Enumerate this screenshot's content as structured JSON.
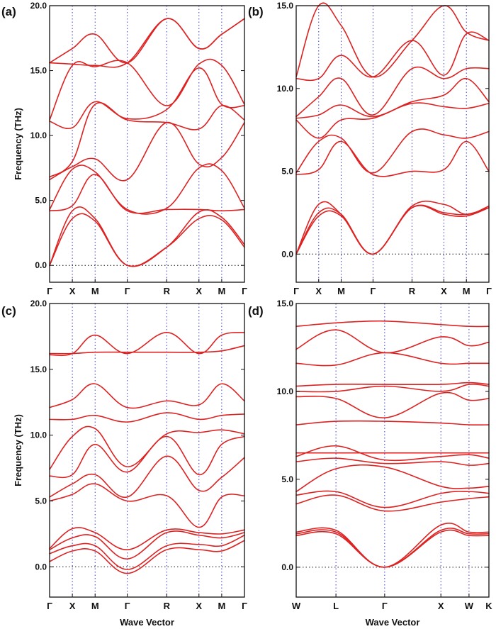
{
  "chart_data": [
    {
      "panel": "(a)",
      "type": "line",
      "ylabel": "Frequency (THz)",
      "xlabel": "",
      "ylim": [
        -1.3,
        20.0
      ],
      "yticks": [
        "0.0",
        "5.0",
        "10.0",
        "15.0",
        "20.0"
      ],
      "ytick_values": [
        0,
        5,
        10,
        15,
        20
      ],
      "path_labels": [
        "Γ",
        "X",
        "M",
        "Γ",
        "R",
        "X",
        "M",
        "Γ"
      ],
      "path_positions": [
        0,
        0.5,
        1.0,
        1.707,
        2.573,
        3.281,
        3.781,
        4.281
      ],
      "series": [
        {
          "x": [
            0,
            0.5,
            1.0,
            1.707,
            2.573,
            3.281,
            3.781,
            4.281
          ],
          "y": [
            0,
            3.6,
            3.4,
            0,
            1.4,
            3.6,
            3.5,
            1.4
          ]
        },
        {
          "x": [
            0,
            0.5,
            1.0,
            1.707,
            2.573,
            3.281,
            3.781,
            4.281
          ],
          "y": [
            0,
            4.2,
            3.6,
            0,
            1.4,
            4.1,
            3.7,
            1.6
          ]
        },
        {
          "x": [
            0,
            0.5,
            1.0,
            1.707,
            2.573,
            3.281,
            3.781,
            4.281
          ],
          "y": [
            4.2,
            4.6,
            7.0,
            4.2,
            4.3,
            4.3,
            4.2,
            4.3
          ]
        },
        {
          "x": [
            0,
            0.5,
            1.0,
            1.707,
            2.573,
            3.281,
            3.781,
            4.281
          ],
          "y": [
            4.3,
            7.4,
            7.2,
            4.3,
            4.4,
            7.5,
            7.3,
            4.4
          ]
        },
        {
          "x": [
            0,
            0.5,
            1.0,
            1.707,
            2.573,
            3.281,
            3.781,
            4.281
          ],
          "y": [
            6.6,
            7.6,
            8.2,
            6.6,
            11.0,
            7.8,
            8.3,
            11.0
          ]
        },
        {
          "x": [
            0,
            0.5,
            1.0,
            1.707,
            2.573,
            3.281,
            3.781,
            4.281
          ],
          "y": [
            6.8,
            8.0,
            12.4,
            11.2,
            11.0,
            10.5,
            12.3,
            11.2
          ]
        },
        {
          "x": [
            0,
            0.5,
            1.0,
            1.707,
            2.573,
            3.281,
            3.781,
            4.281
          ],
          "y": [
            11.1,
            10.6,
            12.6,
            11.3,
            12.0,
            15.2,
            12.4,
            12.3
          ]
        },
        {
          "x": [
            0,
            0.5,
            1.0,
            1.707,
            2.573,
            3.281,
            3.781,
            4.281
          ],
          "y": [
            11.2,
            15.4,
            15.3,
            15.6,
            12.3,
            15.5,
            15.4,
            12.4
          ]
        },
        {
          "x": [
            0,
            0.5,
            1.0,
            1.707,
            2.573,
            3.281,
            3.781,
            4.281
          ],
          "y": [
            15.6,
            15.5,
            15.4,
            15.6,
            19.0,
            16.7,
            17.8,
            19.0
          ]
        },
        {
          "x": [
            0,
            0.5,
            1.0,
            1.707,
            2.573,
            3.281,
            3.781,
            4.281
          ],
          "y": [
            15.6,
            16.7,
            17.8,
            15.6,
            19.0,
            16.7,
            17.8,
            19.0
          ]
        }
      ]
    },
    {
      "panel": "(b)",
      "type": "line",
      "ylabel": "",
      "xlabel": "",
      "ylim": [
        -1.7,
        15.0
      ],
      "yticks": [
        "0.0",
        "5.0",
        "10.0",
        "15.0"
      ],
      "ytick_values": [
        0,
        5,
        10,
        15
      ],
      "path_labels": [
        "Γ",
        "X",
        "M",
        "Γ",
        "R",
        "X",
        "M",
        "Γ"
      ],
      "path_positions": [
        0,
        0.5,
        1.0,
        1.707,
        2.573,
        3.281,
        3.781,
        4.281
      ],
      "series": [
        {
          "x": [
            0,
            0.5,
            1.0,
            1.707,
            2.573,
            3.281,
            3.781,
            4.281
          ],
          "y": [
            0,
            2.3,
            2.3,
            0,
            2.8,
            2.4,
            2.3,
            2.8
          ]
        },
        {
          "x": [
            0,
            0.5,
            1.0,
            1.707,
            2.573,
            3.281,
            3.781,
            4.281
          ],
          "y": [
            0,
            2.5,
            2.4,
            0,
            2.8,
            2.5,
            2.4,
            2.8
          ]
        },
        {
          "x": [
            0,
            0.5,
            1.0,
            1.707,
            2.573,
            3.281,
            3.781,
            4.281
          ],
          "y": [
            0,
            3.0,
            2.4,
            0,
            2.9,
            3.0,
            2.4,
            2.9
          ]
        },
        {
          "x": [
            0,
            0.5,
            1.0,
            1.707,
            2.573,
            3.281,
            3.781,
            4.281
          ],
          "y": [
            4.8,
            5.1,
            6.8,
            4.8,
            5.0,
            5.1,
            6.8,
            5.0
          ]
        },
        {
          "x": [
            0,
            0.5,
            1.0,
            1.707,
            2.573,
            3.281,
            3.781,
            4.281
          ],
          "y": [
            4.9,
            6.8,
            7.0,
            4.9,
            7.4,
            7.2,
            7.0,
            7.4
          ]
        },
        {
          "x": [
            0,
            0.5,
            1.0,
            1.707,
            2.573,
            3.281,
            3.781,
            4.281
          ],
          "y": [
            8.1,
            7.0,
            8.1,
            8.2,
            9.1,
            8.9,
            8.8,
            9.1
          ]
        },
        {
          "x": [
            0,
            0.5,
            1.0,
            1.707,
            2.573,
            3.281,
            3.781,
            4.281
          ],
          "y": [
            8.2,
            8.4,
            9.0,
            8.3,
            9.2,
            9.6,
            10.6,
            9.2
          ]
        },
        {
          "x": [
            0,
            0.5,
            1.0,
            1.707,
            2.573,
            3.281,
            3.781,
            4.281
          ],
          "y": [
            8.3,
            9.5,
            10.6,
            8.4,
            11.2,
            10.6,
            11.2,
            11.2
          ]
        },
        {
          "x": [
            0,
            0.5,
            1.0,
            1.707,
            2.573,
            3.281,
            3.781,
            4.281
          ],
          "y": [
            10.6,
            10.6,
            12.0,
            10.7,
            12.9,
            10.8,
            13.3,
            12.9
          ]
        },
        {
          "x": [
            0,
            0.5,
            1.0,
            1.707,
            2.573,
            3.281,
            3.781,
            4.281
          ],
          "y": [
            10.7,
            15.0,
            13.8,
            10.7,
            12.9,
            15.0,
            13.4,
            12.9
          ]
        }
      ]
    },
    {
      "panel": "(c)",
      "type": "line",
      "ylabel": "Frequency (THz)",
      "xlabel": "Wave Vector",
      "ylim": [
        -2.3,
        20.0
      ],
      "yticks": [
        "0.0",
        "5.0",
        "10.0",
        "15.0",
        "20.0"
      ],
      "ytick_values": [
        0,
        5,
        10,
        15,
        20
      ],
      "path_labels": [
        "Γ",
        "X",
        "M",
        "Γ",
        "R",
        "X",
        "M",
        "Γ"
      ],
      "path_positions": [
        0,
        0.5,
        1.0,
        1.707,
        2.573,
        3.281,
        3.781,
        4.281
      ],
      "series": [
        {
          "x": [
            0,
            0.5,
            1.0,
            1.707,
            2.573,
            3.281,
            3.781,
            4.281
          ],
          "y": [
            0.4,
            1.2,
            1.2,
            -0.5,
            1.3,
            1.3,
            1.2,
            2.0
          ]
        },
        {
          "x": [
            0,
            0.5,
            1.0,
            1.707,
            2.573,
            3.281,
            3.781,
            4.281
          ],
          "y": [
            1.0,
            1.6,
            1.6,
            -0.2,
            1.6,
            1.7,
            1.6,
            2.4
          ]
        },
        {
          "x": [
            0,
            0.5,
            1.0,
            1.707,
            2.573,
            3.281,
            3.781,
            4.281
          ],
          "y": [
            1.3,
            2.2,
            2.3,
            0.6,
            2.6,
            2.4,
            2.2,
            2.6
          ]
        },
        {
          "x": [
            0,
            0.5,
            1.0,
            1.707,
            2.573,
            3.281,
            3.781,
            4.281
          ],
          "y": [
            1.4,
            2.9,
            2.6,
            1.3,
            2.8,
            2.6,
            2.5,
            2.8
          ]
        },
        {
          "x": [
            0,
            0.5,
            1.0,
            1.707,
            2.573,
            3.281,
            3.781,
            4.281
          ],
          "y": [
            5.0,
            5.5,
            6.3,
            5.0,
            5.4,
            3.0,
            5.3,
            5.4
          ]
        },
        {
          "x": [
            0,
            0.5,
            1.0,
            1.707,
            2.573,
            3.281,
            3.781,
            4.281
          ],
          "y": [
            5.3,
            6.3,
            7.0,
            5.3,
            8.4,
            5.8,
            6.8,
            8.3
          ]
        },
        {
          "x": [
            0,
            0.5,
            1.0,
            1.707,
            2.573,
            3.281,
            3.781,
            4.281
          ],
          "y": [
            6.9,
            7.0,
            9.3,
            7.2,
            9.9,
            7.0,
            9.3,
            9.9
          ]
        },
        {
          "x": [
            0,
            0.5,
            1.0,
            1.707,
            2.573,
            3.281,
            3.781,
            4.281
          ],
          "y": [
            7.4,
            9.9,
            10.5,
            7.6,
            10.1,
            10.2,
            10.4,
            10.1
          ]
        },
        {
          "x": [
            0,
            0.5,
            1.0,
            1.707,
            2.573,
            3.281,
            3.781,
            4.281
          ],
          "y": [
            11.2,
            11.2,
            11.5,
            11.0,
            11.7,
            11.2,
            11.5,
            11.6
          ]
        },
        {
          "x": [
            0,
            0.5,
            1.0,
            1.707,
            2.573,
            3.281,
            3.781,
            4.281
          ],
          "y": [
            12.1,
            12.7,
            13.9,
            12.1,
            12.6,
            12.3,
            13.9,
            12.6
          ]
        },
        {
          "x": [
            0,
            0.5,
            1.0,
            1.707,
            2.573,
            3.281,
            3.781,
            4.281
          ],
          "y": [
            16.1,
            16.2,
            17.6,
            16.2,
            17.8,
            16.2,
            17.6,
            17.8
          ]
        },
        {
          "x": [
            0,
            0.5,
            1.0,
            1.707,
            2.573,
            3.281,
            3.781,
            4.281
          ],
          "y": [
            16.2,
            16.2,
            16.3,
            16.3,
            16.3,
            16.3,
            16.4,
            16.8
          ]
        }
      ]
    },
    {
      "panel": "(d)",
      "type": "line",
      "ylabel": "",
      "xlabel": "Wave Vector",
      "ylim": [
        -1.7,
        15.0
      ],
      "yticks": [
        "0.0",
        "5.0",
        "10.0",
        "15.0"
      ],
      "ytick_values": [
        0,
        5,
        10,
        15
      ],
      "path_labels": [
        "W",
        "L",
        "Γ",
        "X",
        "W",
        "K"
      ],
      "path_positions": [
        0,
        0.707,
        1.573,
        2.573,
        3.073,
        3.427
      ],
      "series": [
        {
          "x": [
            0,
            0.707,
            1.573,
            2.573,
            3.073,
            3.427
          ],
          "y": [
            1.8,
            1.9,
            0,
            2.0,
            1.8,
            1.8
          ]
        },
        {
          "x": [
            0,
            0.707,
            1.573,
            2.573,
            3.073,
            3.427
          ],
          "y": [
            1.9,
            2.0,
            0,
            2.1,
            1.9,
            1.9
          ]
        },
        {
          "x": [
            0,
            0.707,
            1.573,
            2.573,
            3.073,
            3.427
          ],
          "y": [
            2.0,
            2.1,
            0,
            2.4,
            2.0,
            2.0
          ]
        },
        {
          "x": [
            0,
            0.707,
            1.573,
            2.573,
            3.073,
            3.427
          ],
          "y": [
            3.6,
            4.1,
            3.2,
            3.7,
            3.9,
            4.0
          ]
        },
        {
          "x": [
            0,
            0.707,
            1.573,
            2.573,
            3.073,
            3.427
          ],
          "y": [
            4.1,
            4.3,
            3.4,
            4.2,
            4.3,
            4.2
          ]
        },
        {
          "x": [
            0,
            0.707,
            1.573,
            2.573,
            3.073,
            3.427
          ],
          "y": [
            4.3,
            5.6,
            5.7,
            4.6,
            4.5,
            4.6
          ]
        },
        {
          "x": [
            0,
            0.707,
            1.573,
            2.573,
            3.073,
            3.427
          ],
          "y": [
            6.0,
            6.2,
            5.9,
            6.0,
            5.8,
            5.9
          ]
        },
        {
          "x": [
            0,
            0.707,
            1.573,
            2.573,
            3.073,
            3.427
          ],
          "y": [
            6.3,
            6.9,
            6.1,
            6.3,
            6.4,
            6.2
          ]
        },
        {
          "x": [
            0,
            0.707,
            1.573,
            2.573,
            3.073,
            3.427
          ],
          "y": [
            6.5,
            6.5,
            6.5,
            6.5,
            6.5,
            6.5
          ]
        },
        {
          "x": [
            0,
            0.707,
            1.573,
            2.573,
            3.073,
            3.427
          ],
          "y": [
            8.1,
            8.3,
            8.3,
            8.2,
            8.1,
            8.1
          ]
        },
        {
          "x": [
            0,
            0.707,
            1.573,
            2.573,
            3.073,
            3.427
          ],
          "y": [
            9.7,
            9.6,
            8.5,
            9.9,
            9.5,
            9.6
          ]
        },
        {
          "x": [
            0,
            0.707,
            1.573,
            2.573,
            3.073,
            3.427
          ],
          "y": [
            10.0,
            10.0,
            10.3,
            10.0,
            10.4,
            10.3
          ]
        },
        {
          "x": [
            0,
            0.707,
            1.573,
            2.573,
            3.073,
            3.427
          ],
          "y": [
            10.3,
            10.4,
            10.4,
            10.4,
            10.5,
            10.4
          ]
        },
        {
          "x": [
            0,
            0.707,
            1.573,
            2.573,
            3.073,
            3.427
          ],
          "y": [
            11.6,
            11.5,
            12.2,
            11.6,
            11.6,
            11.6
          ]
        },
        {
          "x": [
            0,
            0.707,
            1.573,
            2.573,
            3.073,
            3.427
          ],
          "y": [
            12.4,
            13.5,
            12.2,
            13.1,
            12.6,
            12.8
          ]
        },
        {
          "x": [
            0,
            0.707,
            1.573,
            2.573,
            3.073,
            3.427
          ],
          "y": [
            13.7,
            13.9,
            14.0,
            13.8,
            13.7,
            13.7
          ]
        }
      ]
    }
  ],
  "colors": {
    "band": "#dd2222",
    "symmetry_line": "#3a3ad0",
    "axis": "#111111"
  }
}
